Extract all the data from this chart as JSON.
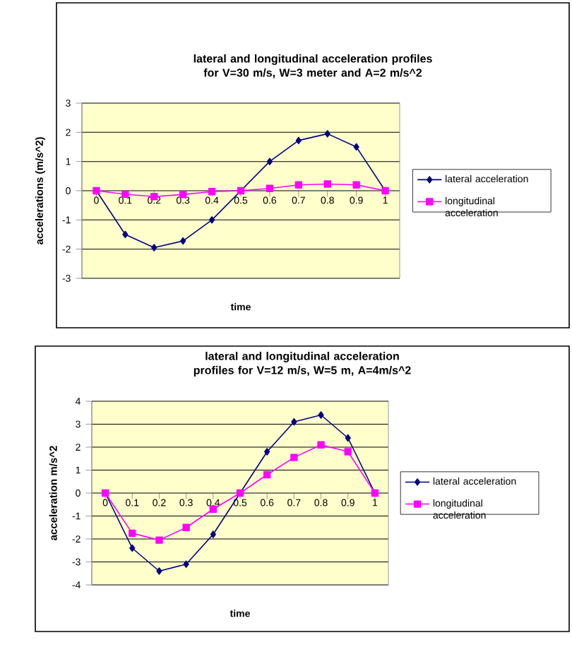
{
  "chart_data": [
    {
      "type": "line",
      "title": "lateral and longitudinal acceleration profiles for V=30 m/s,  W=3 meter and A=2 m/s^2",
      "xlabel": "time",
      "ylabel": "accelerations (m/s^2)",
      "categories": [
        "0",
        "0.1",
        "0.2",
        "0.3",
        "0.4",
        "0.5",
        "0.6",
        "0.7",
        "0.8",
        "0.9",
        "1"
      ],
      "series": [
        {
          "name": "lateral acceleration",
          "color": "#000080",
          "marker": "diamond",
          "values": [
            0,
            -1.5,
            -1.95,
            -1.72,
            -1,
            0,
            1,
            1.72,
            1.95,
            1.5,
            0
          ]
        },
        {
          "name": "longitudinal acceleration",
          "color": "#ff00ff",
          "marker": "square",
          "values": [
            0,
            -0.12,
            -0.2,
            -0.13,
            -0.03,
            0,
            0.08,
            0.2,
            0.23,
            0.2,
            0
          ]
        }
      ],
      "ylim": [
        -3,
        3
      ],
      "yticks": [
        -3,
        -2,
        -1,
        0,
        1,
        2,
        3
      ],
      "grid": "y",
      "legend": "right",
      "line_style": "solid"
    },
    {
      "type": "line",
      "title": "lateral and longitudinal acceleration profiles for V=12 m/s, W=5 m, A=4m/s^2",
      "xlabel": "time",
      "ylabel": "acceleration m/s^2",
      "categories": [
        "0",
        "0.1",
        "0.2",
        "0.3",
        "0.4",
        "0.5",
        "0.6",
        "0.7",
        "0.8",
        "0.9",
        "1"
      ],
      "series": [
        {
          "name": "lateral acceleration",
          "color": "#000080",
          "marker": "diamond",
          "values": [
            0,
            -2.4,
            -3.4,
            -3.1,
            -1.8,
            0,
            1.8,
            3.1,
            3.4,
            2.4,
            0
          ]
        },
        {
          "name": "longitudinal acceleration",
          "color": "#ff00ff",
          "marker": "square",
          "values": [
            0,
            -1.75,
            -2.05,
            -1.5,
            -0.7,
            0,
            0.8,
            1.55,
            2.1,
            1.8,
            0
          ]
        }
      ],
      "ylim": [
        -4,
        4
      ],
      "yticks": [
        -4,
        -3,
        -2,
        -1,
        0,
        1,
        2,
        3,
        4
      ],
      "grid": "y",
      "legend": "right",
      "line_style": "solid"
    }
  ]
}
